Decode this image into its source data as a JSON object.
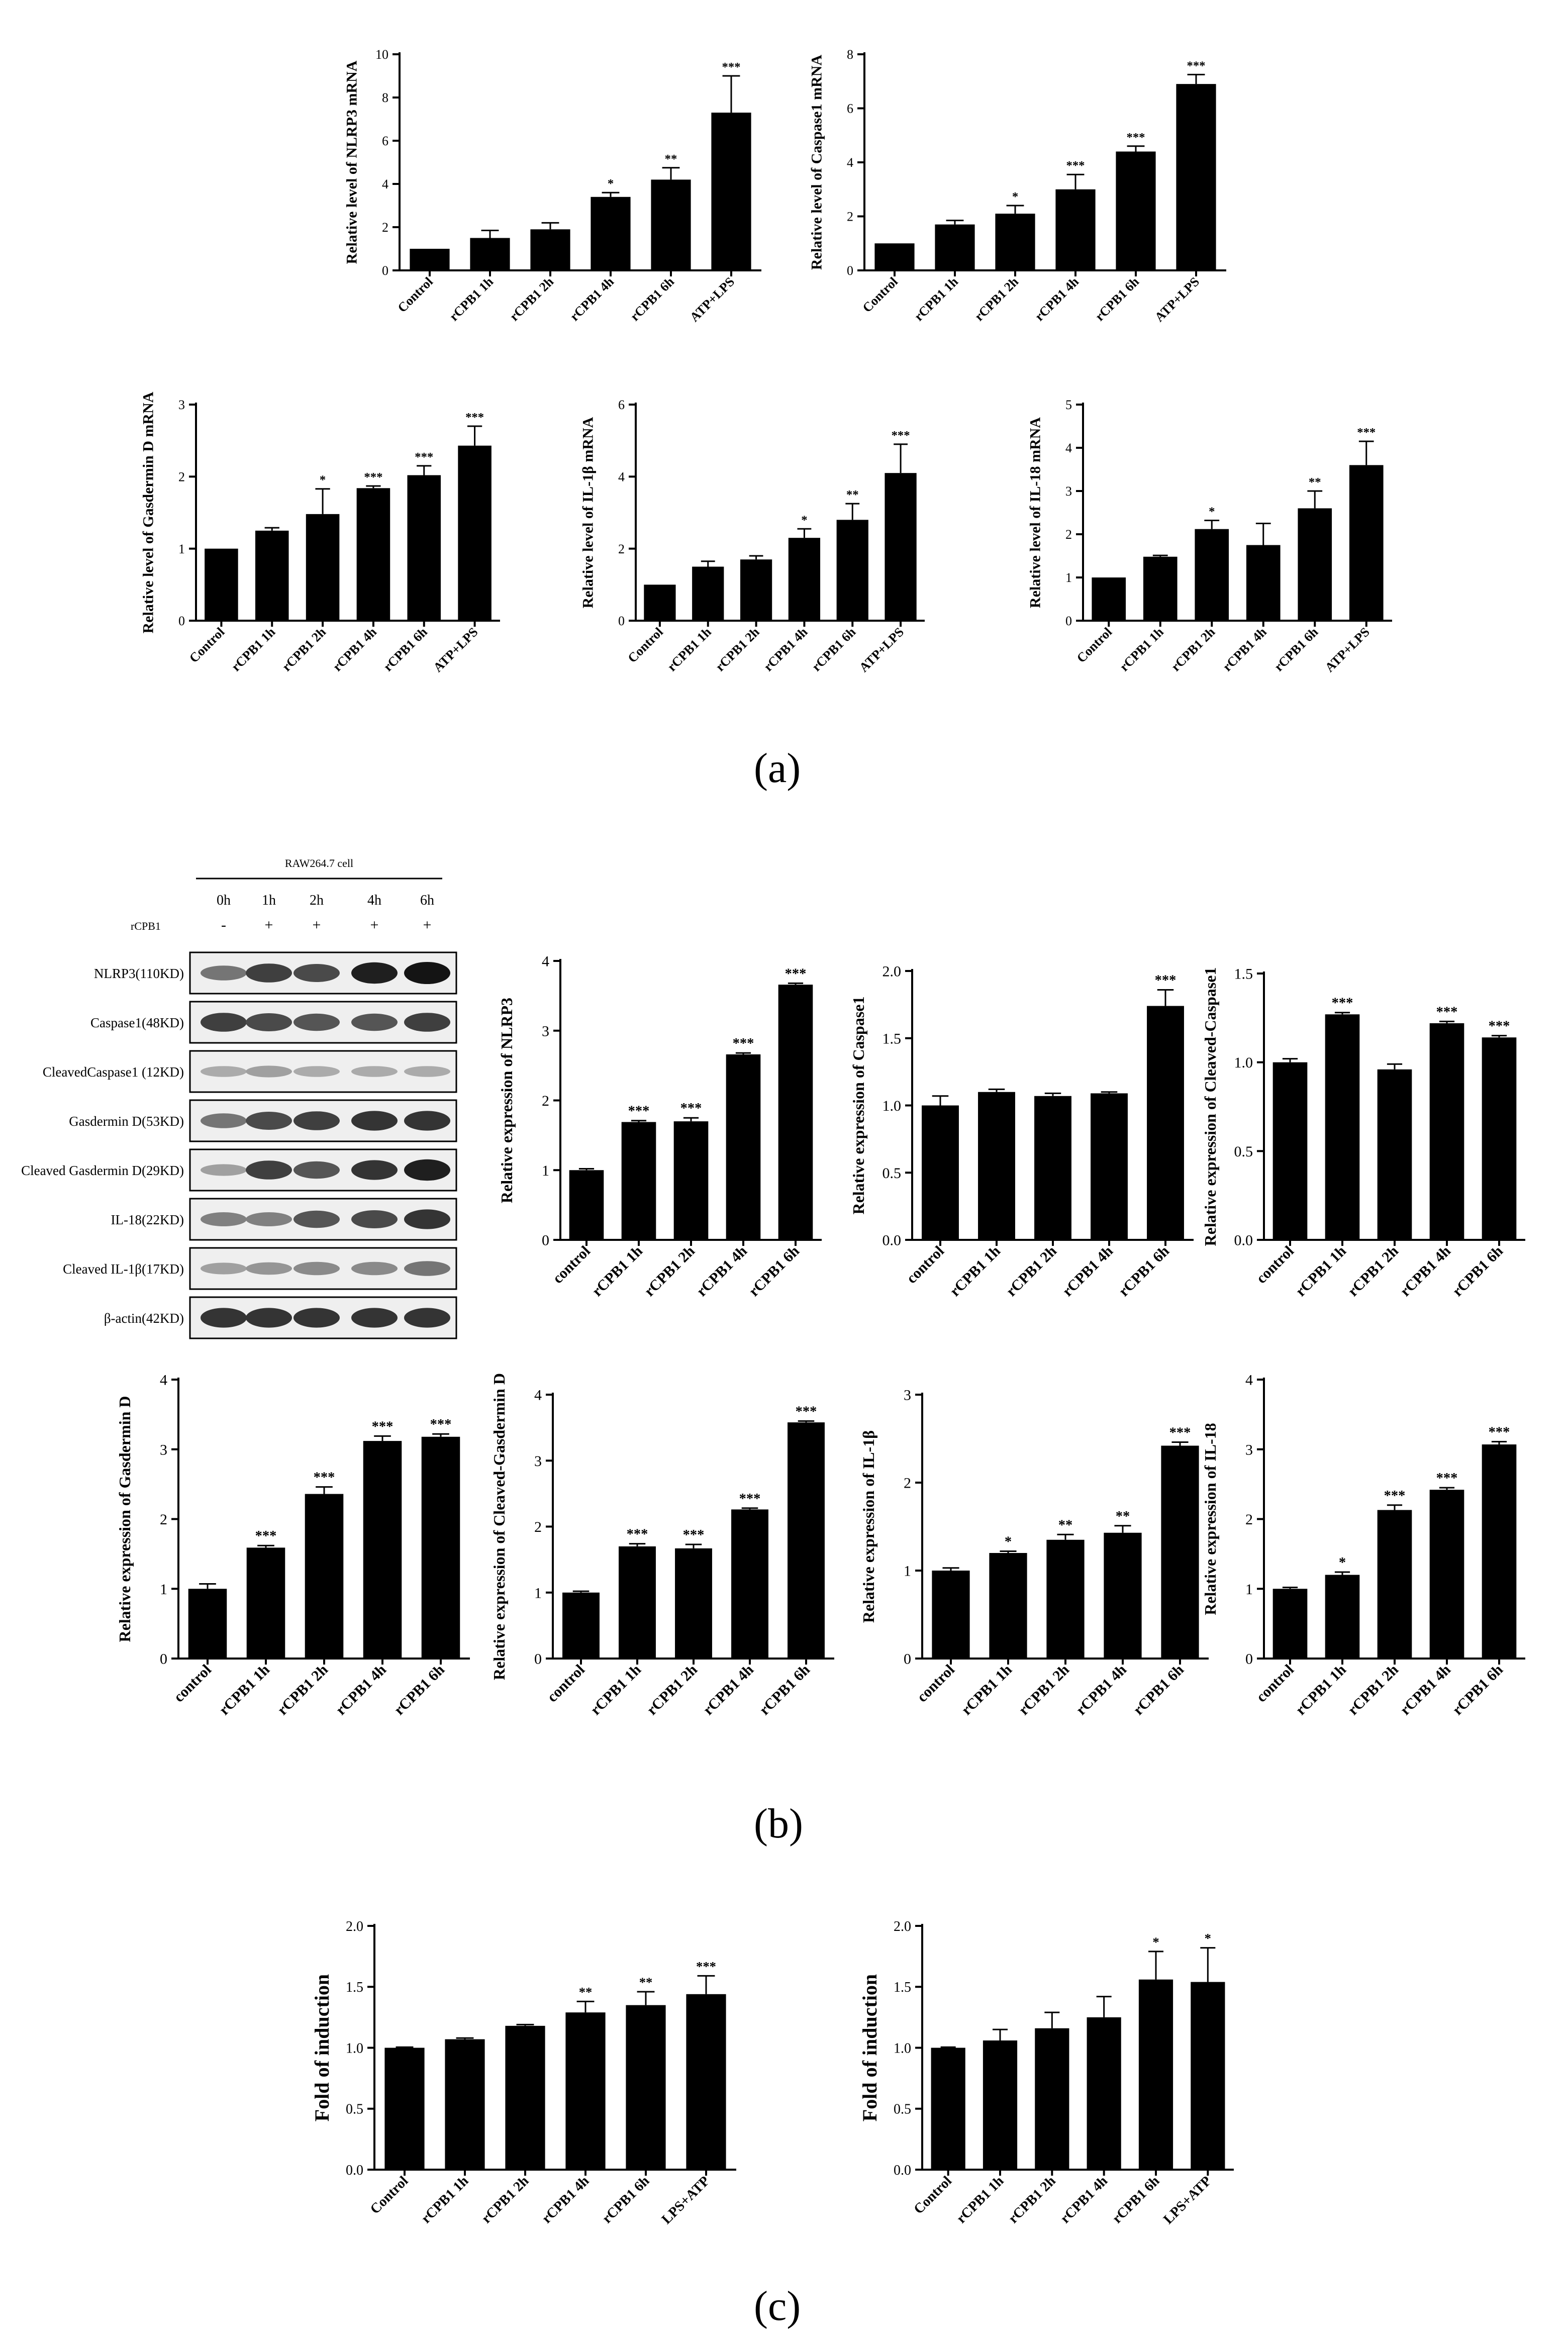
{
  "panel_labels": {
    "a": "(a)",
    "b": "(b)",
    "c": "(c)"
  },
  "western_blot": {
    "cell_label": "RAW264.7 cell",
    "time_points": [
      "0h",
      "1h",
      "2h",
      "4h",
      "6h"
    ],
    "treatment_label": "rCPB1",
    "treatment_signs": [
      "-",
      "+",
      "+",
      "+",
      "+"
    ],
    "bands": [
      {
        "label": "NLRP3(110KD)",
        "intensity": [
          0.55,
          0.8,
          0.75,
          0.95,
          1.0
        ]
      },
      {
        "label": "Caspase1(48KD)",
        "intensity": [
          0.8,
          0.75,
          0.7,
          0.7,
          0.8
        ]
      },
      {
        "label": "CleavedCaspase1 (12KD)",
        "intensity": [
          0.3,
          0.35,
          0.3,
          0.3,
          0.3
        ]
      },
      {
        "label": "Gasdermin D(53KD)",
        "intensity": [
          0.55,
          0.75,
          0.8,
          0.85,
          0.85
        ]
      },
      {
        "label": "Cleaved Gasdermin D(29KD)",
        "intensity": [
          0.35,
          0.8,
          0.7,
          0.85,
          0.95
        ]
      },
      {
        "label": "IL-18(22KD)",
        "intensity": [
          0.5,
          0.5,
          0.7,
          0.75,
          0.85
        ]
      },
      {
        "label": "Cleaved IL-1β(17KD)",
        "intensity": [
          0.35,
          0.4,
          0.45,
          0.45,
          0.55
        ]
      },
      {
        "label": "β-actin(42KD)",
        "intensity": [
          0.85,
          0.85,
          0.85,
          0.85,
          0.85
        ]
      }
    ]
  },
  "chart_data": [
    {
      "id": "a1",
      "type": "bar",
      "ylabel": "Relative level of NLRP3 mRNA",
      "categories": [
        "Control",
        "rCPB1 1h",
        "rCPB1 2h",
        "rCPB1 4h",
        "rCPB1 6h",
        "ATP+LPS"
      ],
      "values": [
        1.0,
        1.5,
        1.9,
        3.4,
        4.2,
        7.3
      ],
      "errors": [
        0,
        0.35,
        0.3,
        0.2,
        0.55,
        1.7
      ],
      "sig": [
        "",
        "",
        "",
        "*",
        "**",
        "***"
      ],
      "ylim": [
        0,
        10
      ],
      "yticks": [
        "0",
        "2",
        "4",
        "6",
        "8",
        "10"
      ]
    },
    {
      "id": "a2",
      "type": "bar",
      "ylabel": "Relative level of Caspase1 mRNA",
      "categories": [
        "Control",
        "rCPB1 1h",
        "rCPB1 2h",
        "rCPB1 4h",
        "rCPB1 6h",
        "ATP+LPS"
      ],
      "values": [
        1.0,
        1.7,
        2.1,
        3.0,
        4.4,
        6.9
      ],
      "errors": [
        0,
        0.15,
        0.3,
        0.55,
        0.2,
        0.35
      ],
      "sig": [
        "",
        "",
        "*",
        "***",
        "***",
        "***"
      ],
      "ylim": [
        0,
        8
      ],
      "yticks": [
        "0",
        "2",
        "4",
        "6",
        "8"
      ]
    },
    {
      "id": "a3",
      "type": "bar",
      "ylabel": "Relative level of Gasdermin D mRNA",
      "categories": [
        "Control",
        "rCPB1 1h",
        "rCPB1 2h",
        "rCPB1 4h",
        "rCPB1 6h",
        "ATP+LPS"
      ],
      "values": [
        1.0,
        1.25,
        1.48,
        1.84,
        2.02,
        2.43
      ],
      "errors": [
        0,
        0.04,
        0.35,
        0.03,
        0.13,
        0.27
      ],
      "sig": [
        "",
        "",
        "*",
        "***",
        "***",
        "***"
      ],
      "ylim": [
        0,
        3
      ],
      "yticks": [
        "0",
        "1",
        "2",
        "3"
      ]
    },
    {
      "id": "a4",
      "type": "bar",
      "ylabel": "Relative level of IL-1β mRNA",
      "categories": [
        "Control",
        "rCPB1 1h",
        "rCPB1 2h",
        "rCPB1 4h",
        "rCPB1 6h",
        "ATP+LPS"
      ],
      "values": [
        1.0,
        1.5,
        1.7,
        2.3,
        2.8,
        4.1
      ],
      "errors": [
        0,
        0.15,
        0.1,
        0.25,
        0.45,
        0.8
      ],
      "sig": [
        "",
        "",
        "",
        "*",
        "**",
        "***"
      ],
      "ylim": [
        0,
        6
      ],
      "yticks": [
        "0",
        "2",
        "4",
        "6"
      ]
    },
    {
      "id": "a5",
      "type": "bar",
      "ylabel": "Relative level of IL-18 mRNA",
      "categories": [
        "Control",
        "rCPB1 1h",
        "rCPB1 2h",
        "rCPB1 4h",
        "rCPB1 6h",
        "ATP+LPS"
      ],
      "values": [
        1.0,
        1.48,
        2.12,
        1.75,
        2.6,
        3.6
      ],
      "errors": [
        0,
        0.03,
        0.2,
        0.5,
        0.4,
        0.55
      ],
      "sig": [
        "",
        "",
        "*",
        "",
        "**",
        "***"
      ],
      "ylim": [
        0,
        5
      ],
      "yticks": [
        "0",
        "1",
        "2",
        "3",
        "4",
        "5"
      ]
    },
    {
      "id": "b1",
      "type": "bar",
      "ylabel": "Relative expression of NLRP3",
      "categories": [
        "control",
        "rCPB1 1h",
        "rCPB1 2h",
        "rCPB1 4h",
        "rCPB1 6h"
      ],
      "values": [
        1.0,
        1.69,
        1.7,
        2.66,
        3.66
      ],
      "errors": [
        0.02,
        0.02,
        0.05,
        0.02,
        0.02
      ],
      "sig": [
        "",
        "***",
        "***",
        "***",
        "***"
      ],
      "ylim": [
        0,
        4
      ],
      "yticks": [
        "0",
        "1",
        "2",
        "3",
        "4"
      ]
    },
    {
      "id": "b2",
      "type": "bar",
      "ylabel": "Relative expression of Caspase1",
      "categories": [
        "control",
        "rCPB1 1h",
        "rCPB1 2h",
        "rCPB1 4h",
        "rCPB1 6h"
      ],
      "values": [
        1.0,
        1.1,
        1.07,
        1.09,
        1.74
      ],
      "errors": [
        0.07,
        0.02,
        0.02,
        0.01,
        0.12
      ],
      "sig": [
        "",
        "",
        "",
        "",
        "***"
      ],
      "ylim": [
        0,
        2.0
      ],
      "yticks": [
        "0.0",
        "0.5",
        "1.0",
        "1.5",
        "2.0"
      ]
    },
    {
      "id": "b3",
      "type": "bar",
      "ylabel": "Relative expression of Cleaved-Caspase1",
      "categories": [
        "control",
        "rCPB1 1h",
        "rCPB1 2h",
        "rCPB1 4h",
        "rCPB1 6h"
      ],
      "values": [
        1.0,
        1.27,
        0.96,
        1.22,
        1.14
      ],
      "errors": [
        0.02,
        0.01,
        0.03,
        0.01,
        0.01
      ],
      "sig": [
        "",
        "***",
        "",
        "***",
        "***"
      ],
      "ylim": [
        0,
        1.5
      ],
      "yticks": [
        "0.0",
        "0.5",
        "1.0",
        "1.5"
      ]
    },
    {
      "id": "b4",
      "type": "bar",
      "ylabel": "Relative expression of Gasdermin D",
      "categories": [
        "control",
        "rCPB1 1h",
        "rCPB1 2h",
        "rCPB1 4h",
        "rCPB1 6h"
      ],
      "values": [
        1.0,
        1.59,
        2.36,
        3.12,
        3.18
      ],
      "errors": [
        0.07,
        0.03,
        0.1,
        0.07,
        0.04
      ],
      "sig": [
        "",
        "***",
        "***",
        "***",
        "***"
      ],
      "ylim": [
        0,
        4
      ],
      "yticks": [
        "0",
        "1",
        "2",
        "3",
        "4"
      ]
    },
    {
      "id": "b5",
      "type": "bar",
      "ylabel": "Relative expression of Cleaved-Gasdermin D",
      "categories": [
        "control",
        "rCPB1 1h",
        "rCPB1 2h",
        "rCPB1 4h",
        "rCPB1 6h"
      ],
      "values": [
        1.0,
        1.7,
        1.67,
        2.26,
        3.58
      ],
      "errors": [
        0.02,
        0.04,
        0.06,
        0.02,
        0.02
      ],
      "sig": [
        "",
        "***",
        "***",
        "***",
        "***"
      ],
      "ylim": [
        0,
        4
      ],
      "yticks": [
        "0",
        "1",
        "2",
        "3",
        "4"
      ]
    },
    {
      "id": "b6",
      "type": "bar",
      "ylabel": "Relative expression of IL-1β",
      "categories": [
        "control",
        "rCPB1 1h",
        "rCPB1 2h",
        "rCPB1 4h",
        "rCPB1 6h"
      ],
      "values": [
        1.0,
        1.2,
        1.35,
        1.43,
        2.42
      ],
      "errors": [
        0.03,
        0.02,
        0.06,
        0.08,
        0.04
      ],
      "sig": [
        "",
        "*",
        "**",
        "**",
        "***"
      ],
      "ylim": [
        0,
        3
      ],
      "yticks": [
        "0",
        "1",
        "2",
        "3"
      ]
    },
    {
      "id": "b7",
      "type": "bar",
      "ylabel": "Relative expression of IL-18",
      "categories": [
        "control",
        "rCPB1 1h",
        "rCPB1 2h",
        "rCPB1 4h",
        "rCPB1 6h"
      ],
      "values": [
        1.0,
        1.2,
        2.13,
        2.42,
        3.07
      ],
      "errors": [
        0.02,
        0.04,
        0.07,
        0.03,
        0.04
      ],
      "sig": [
        "",
        "*",
        "***",
        "***",
        "***"
      ],
      "ylim": [
        0,
        4
      ],
      "yticks": [
        "0",
        "1",
        "2",
        "3",
        "4"
      ]
    },
    {
      "id": "c1",
      "type": "bar",
      "ylabel": "Fold of induction",
      "categories": [
        "Control",
        "rCPB1 1h",
        "rCPB1 2h",
        "rCPB1 4h",
        "rCPB1 6h",
        "LPS+ATP"
      ],
      "values": [
        1.0,
        1.07,
        1.18,
        1.29,
        1.35,
        1.44
      ],
      "errors": [
        0.005,
        0.01,
        0.01,
        0.09,
        0.11,
        0.15
      ],
      "sig": [
        "",
        "",
        "",
        "**",
        "**",
        "***"
      ],
      "ylim": [
        0,
        2.0
      ],
      "yticks": [
        "0.0",
        "0.5",
        "1.0",
        "1.5",
        "2.0"
      ]
    },
    {
      "id": "c2",
      "type": "bar",
      "ylabel": "Fold of induction",
      "categories": [
        "Control",
        "rCPB1 1h",
        "rCPB1 2h",
        "rCPB1 4h",
        "rCPB1 6h",
        "LPS+ATP"
      ],
      "values": [
        1.0,
        1.06,
        1.16,
        1.25,
        1.56,
        1.54
      ],
      "errors": [
        0.005,
        0.09,
        0.13,
        0.17,
        0.23,
        0.28
      ],
      "sig": [
        "",
        "",
        "",
        "",
        "*",
        "*"
      ],
      "ylim": [
        0,
        2.0
      ],
      "yticks": [
        "0.0",
        "0.5",
        "1.0",
        "1.5",
        "2.0"
      ]
    }
  ]
}
